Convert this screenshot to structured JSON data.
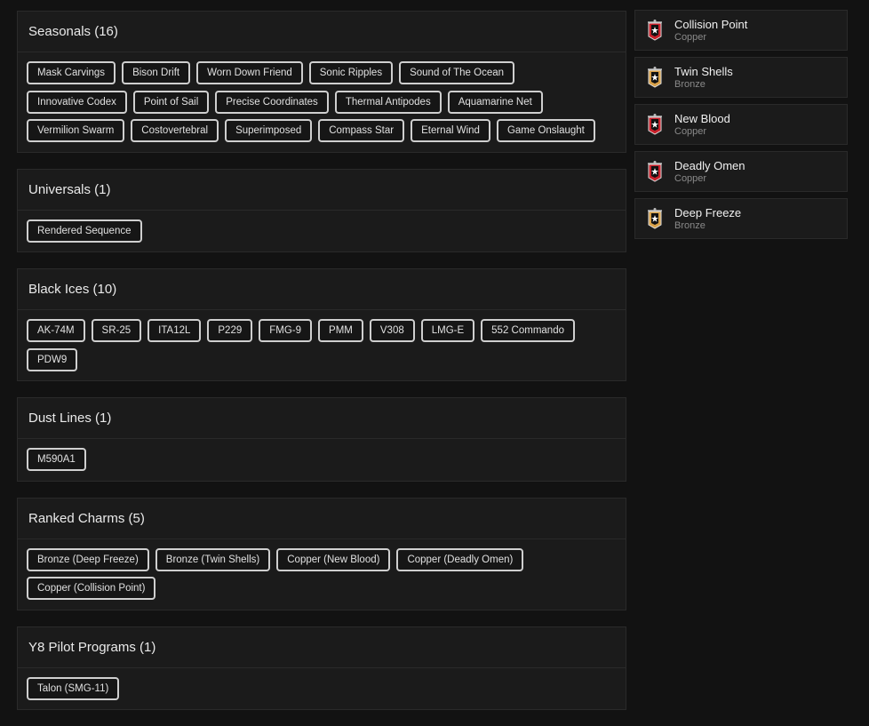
{
  "sections": [
    {
      "title": "Seasonals (16)",
      "items": [
        "Mask Carvings",
        "Bison Drift",
        "Worn Down Friend",
        "Sonic Ripples",
        "Sound of The Ocean",
        "Innovative Codex",
        "Point of Sail",
        "Precise Coordinates",
        "Thermal Antipodes",
        "Aquamarine Net",
        "Vermilion Swarm",
        "Costovertebral",
        "Superimposed",
        "Compass Star",
        "Eternal Wind",
        "Game Onslaught"
      ]
    },
    {
      "title": "Universals (1)",
      "items": [
        "Rendered Sequence"
      ]
    },
    {
      "title": "Black Ices (10)",
      "items": [
        "AK-74M",
        "SR-25",
        "ITA12L",
        "P229",
        "FMG-9",
        "PMM",
        "V308",
        "LMG-E",
        "552 Commando",
        "PDW9"
      ]
    },
    {
      "title": "Dust Lines (1)",
      "items": [
        "M590A1"
      ]
    },
    {
      "title": "Ranked Charms (5)",
      "items": [
        "Bronze (Deep Freeze)",
        "Bronze (Twin Shells)",
        "Copper (New Blood)",
        "Copper (Deadly Omen)",
        "Copper (Collision Point)"
      ]
    },
    {
      "title": "Y8 Pilot Programs (1)",
      "items": [
        "Talon (SMG-11)"
      ]
    }
  ],
  "charms": [
    {
      "name": "Collision Point",
      "tier": "Copper",
      "icon": "copper-rank-banner-icon",
      "color": "#c8202a"
    },
    {
      "name": "Twin Shells",
      "tier": "Bronze",
      "icon": "bronze-rank-banner-icon",
      "color": "#d9a24a"
    },
    {
      "name": "New Blood",
      "tier": "Copper",
      "icon": "copper-rank-banner-icon",
      "color": "#c8202a"
    },
    {
      "name": "Deadly Omen",
      "tier": "Copper",
      "icon": "copper-rank-banner-icon",
      "color": "#c8202a"
    },
    {
      "name": "Deep Freeze",
      "tier": "Bronze",
      "icon": "bronze-rank-banner-icon",
      "color": "#d9a24a"
    }
  ]
}
